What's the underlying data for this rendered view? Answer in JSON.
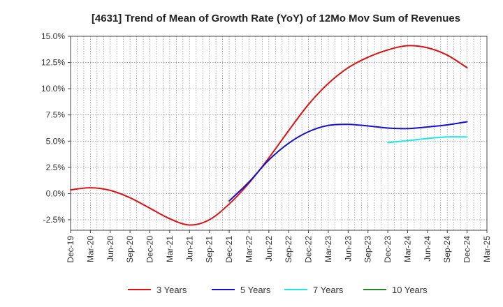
{
  "chart_data": {
    "type": "line",
    "title": "[4631]  Trend of Mean of Growth Rate (YoY) of 12Mo Mov Sum of Revenues",
    "xlabel": "",
    "ylabel": "",
    "categories": [
      "Dec-19",
      "Mar-20",
      "Jun-20",
      "Sep-20",
      "Dec-20",
      "Mar-21",
      "Jun-21",
      "Sep-21",
      "Dec-21",
      "Mar-22",
      "Jun-22",
      "Sep-22",
      "Dec-22",
      "Mar-23",
      "Jun-23",
      "Sep-23",
      "Dec-23",
      "Mar-24",
      "Jun-24",
      "Sep-24",
      "Dec-24",
      "Mar-25"
    ],
    "ylim": [
      -3.5,
      15.0
    ],
    "yticks": [
      -2.5,
      0.0,
      2.5,
      5.0,
      7.5,
      10.0,
      12.5,
      15.0
    ],
    "ytick_labels": [
      "-2.5%",
      "0.0%",
      "2.5%",
      "5.0%",
      "7.5%",
      "10.0%",
      "12.5%",
      "15.0%"
    ],
    "grid": true,
    "legend_position": "bottom",
    "series": [
      {
        "name": "3 Years",
        "color": "#dd1111",
        "values": [
          0.35,
          0.55,
          0.3,
          -0.4,
          -1.4,
          -2.4,
          -3.0,
          -2.5,
          -1.0,
          1.0,
          3.4,
          6.0,
          8.5,
          10.5,
          12.0,
          13.0,
          13.7,
          14.1,
          13.9,
          13.2,
          12.0,
          null
        ]
      },
      {
        "name": "5 Years",
        "color": "#1111cc",
        "values": [
          null,
          null,
          null,
          null,
          null,
          null,
          null,
          null,
          -0.7,
          1.1,
          3.2,
          4.8,
          5.9,
          6.5,
          6.6,
          6.45,
          6.25,
          6.2,
          6.35,
          6.55,
          6.85,
          null
        ]
      },
      {
        "name": "7 Years",
        "color": "#22e5e5",
        "values": [
          null,
          null,
          null,
          null,
          null,
          null,
          null,
          null,
          null,
          null,
          null,
          null,
          null,
          null,
          null,
          null,
          4.85,
          5.05,
          5.25,
          5.4,
          5.4,
          null
        ]
      },
      {
        "name": "10 Years",
        "color": "#228822",
        "values": [
          null,
          null,
          null,
          null,
          null,
          null,
          null,
          null,
          null,
          null,
          null,
          null,
          null,
          null,
          null,
          null,
          null,
          null,
          null,
          null,
          null,
          null
        ]
      }
    ]
  }
}
